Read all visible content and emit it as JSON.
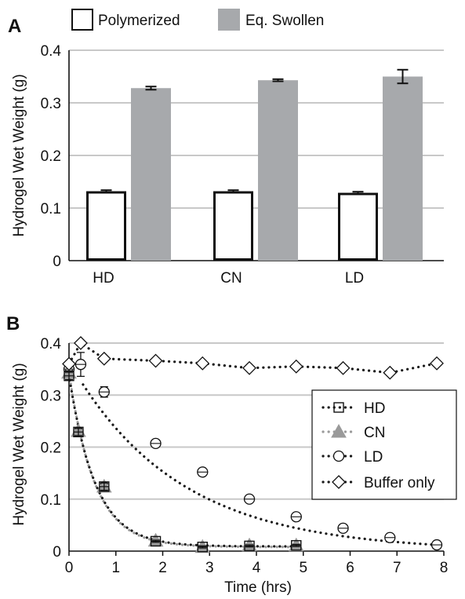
{
  "chart_data": [
    {
      "panel": "A",
      "type": "bar",
      "title": "",
      "ylabel": "Hydrogel Wet Weight (g)",
      "xlabel": "",
      "ylim": [
        0,
        0.4
      ],
      "yticks": [
        "0",
        "0.1",
        "0.2",
        "0.3",
        "0.4"
      ],
      "grid": true,
      "legend_position": "top",
      "categories": [
        "HD",
        "CN",
        "LD"
      ],
      "series": [
        {
          "name": "Polymerized",
          "values": [
            0.132,
            0.132,
            0.129
          ],
          "errors": [
            0.002,
            0.002,
            0.002
          ],
          "fill": "#ffffff",
          "stroke": "#111111"
        },
        {
          "name": "Eq. Swollen",
          "values": [
            0.328,
            0.343,
            0.35
          ],
          "errors": [
            0.003,
            0.002,
            0.013
          ],
          "fill": "#a7a9ac",
          "stroke": "#a7a9ac"
        }
      ]
    },
    {
      "panel": "B",
      "type": "scatter",
      "title": "",
      "xlabel": "Time (hrs)",
      "ylabel": "Hydrogel Wet Weight (g)",
      "xlim": [
        0,
        8
      ],
      "ylim": [
        0,
        0.4
      ],
      "xticks": [
        "0",
        "1",
        "2",
        "3",
        "4",
        "5",
        "6",
        "7",
        "8"
      ],
      "yticks": [
        "0",
        "0.1",
        "0.2",
        "0.3",
        "0.4"
      ],
      "grid": true,
      "legend_position": "right",
      "series": [
        {
          "name": "HD",
          "marker": "square",
          "x": [
            0,
            0.2,
            0.75,
            1.85,
            2.85,
            3.85,
            4.85
          ],
          "y": [
            0.337,
            0.229,
            0.124,
            0.019,
            0.008,
            0.01,
            0.011
          ],
          "errors": [
            0.007,
            0.007,
            0.007,
            0.002,
            0.002,
            0.002,
            0.002
          ]
        },
        {
          "name": "CN",
          "marker": "triangle",
          "x": [
            0,
            0.2,
            0.75,
            1.85,
            2.85,
            3.85,
            4.85
          ],
          "y": [
            0.343,
            0.231,
            0.124,
            0.02,
            0.008,
            0.011,
            0.011
          ],
          "errors": [
            0.005,
            0.004,
            0.005,
            0.002,
            0.002,
            0.002,
            0.002
          ]
        },
        {
          "name": "LD",
          "marker": "circle",
          "x": [
            0,
            0.25,
            0.75,
            1.85,
            2.85,
            3.85,
            4.85,
            5.85,
            6.85,
            7.85
          ],
          "y": [
            0.35,
            0.359,
            0.306,
            0.207,
            0.152,
            0.1,
            0.066,
            0.044,
            0.026,
            0.012
          ],
          "errors": [
            0.01,
            0.023,
            0.01,
            0.002,
            0.002,
            0.002,
            0.002,
            0.004,
            0.002,
            0.002
          ]
        },
        {
          "name": "Buffer only",
          "marker": "diamond",
          "x": [
            0,
            0.25,
            0.75,
            1.85,
            2.85,
            3.85,
            4.85,
            5.85,
            6.85,
            7.85
          ],
          "y": [
            0.36,
            0.4,
            0.37,
            0.366,
            0.361,
            0.352,
            0.355,
            0.352,
            0.343,
            0.361
          ],
          "errors": [
            0,
            0,
            0,
            0,
            0,
            0,
            0,
            0,
            0,
            0
          ]
        }
      ]
    }
  ]
}
